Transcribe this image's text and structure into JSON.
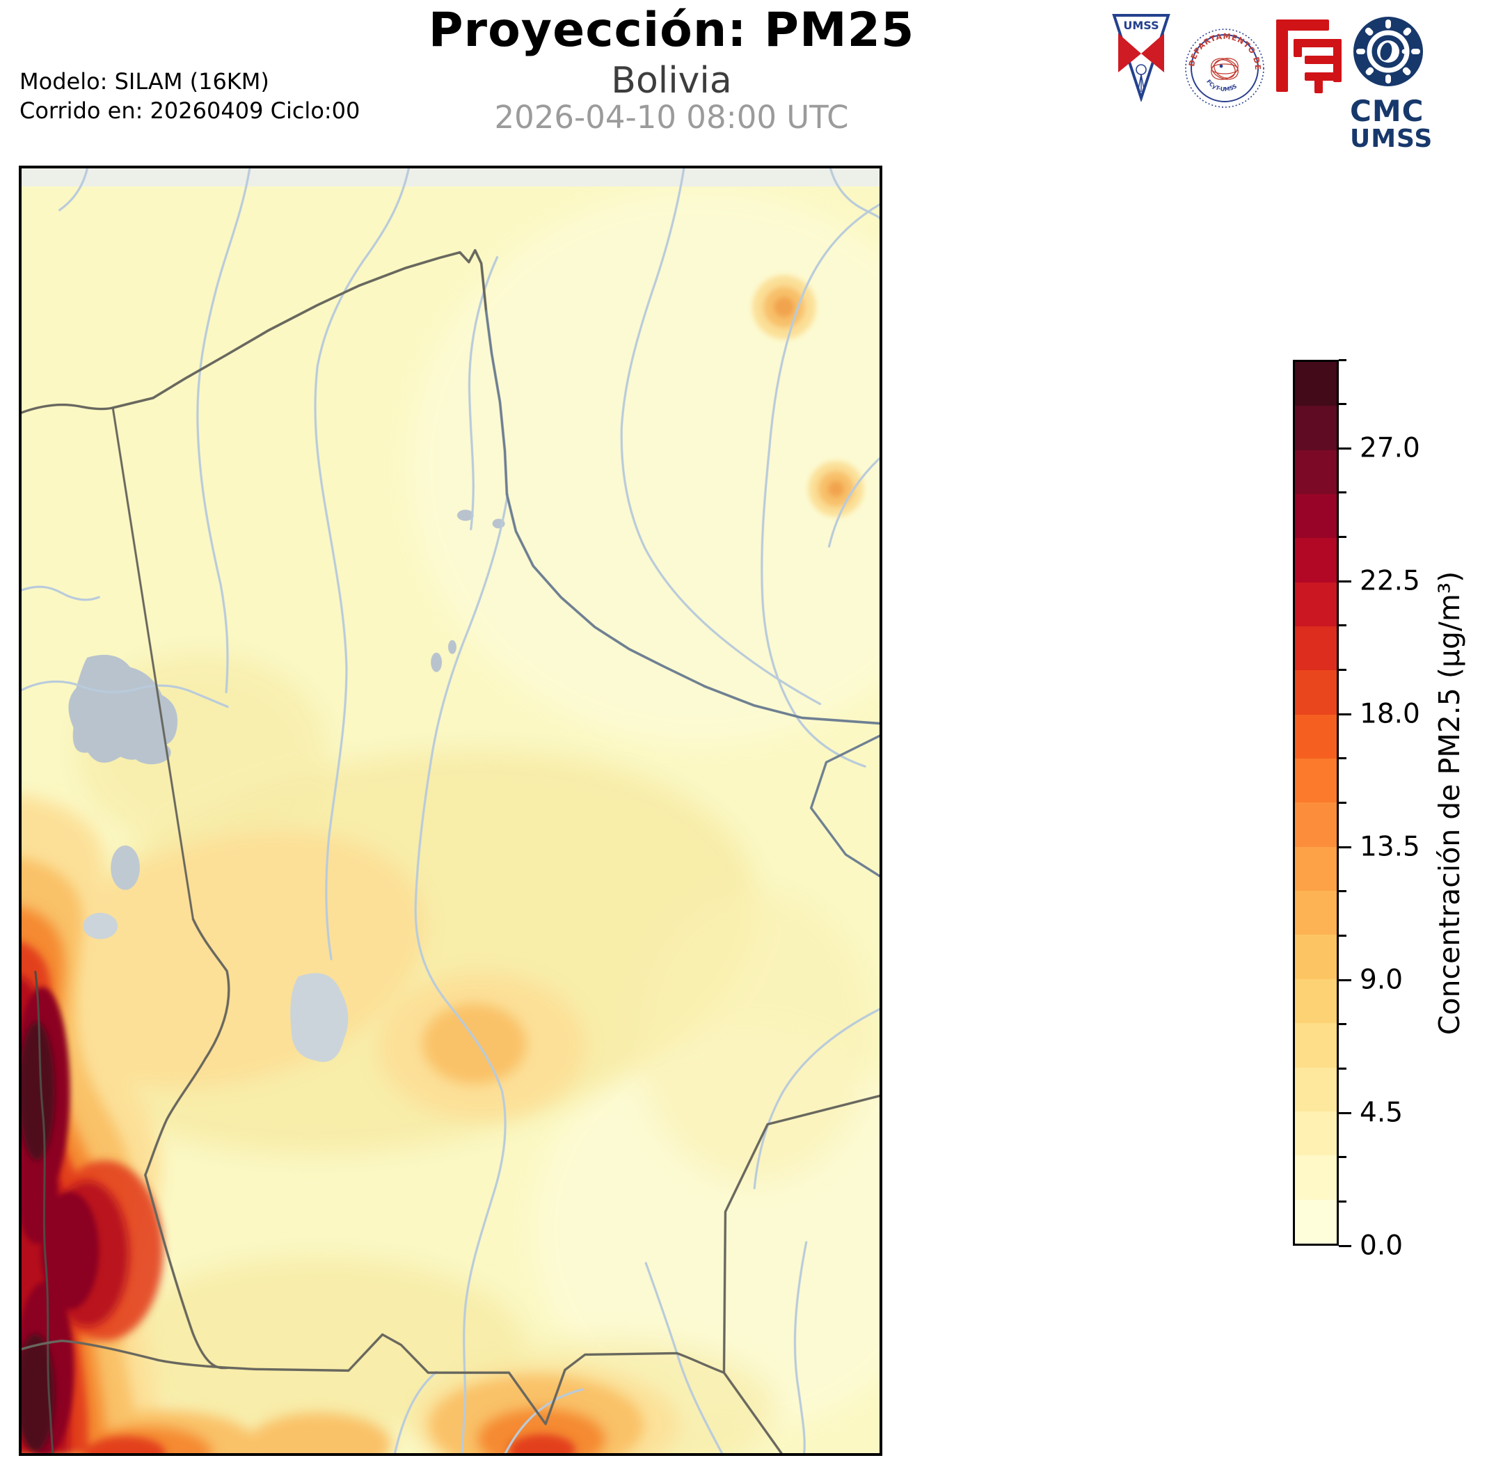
{
  "header": {
    "title": "Proyección: PM25",
    "subtitle": "Bolivia",
    "datetime": "2026-04-10 08:00 UTC",
    "model_line1": "Modelo: SILAM (16KM)",
    "model_line2": "Corrido en: 20260409 Ciclo:00"
  },
  "logos": {
    "umss_pennant": "UMSS",
    "seal_arc_top": "DEPARTAMENTO DE FÍSICA",
    "seal_arc_bottom": "FCyT-UMSS",
    "cmc_title": "CMC",
    "cmc_subtitle": "UMSS"
  },
  "colorbar": {
    "label": "Concentración de PM2.5 (µg/m³)",
    "range_min": 0.0,
    "range_max": 30.0,
    "band_step": 1.5,
    "major_tick_step": 4.5,
    "major_ticks": [
      "0.0",
      "4.5",
      "9.0",
      "13.5",
      "18.0",
      "22.5",
      "27.0"
    ],
    "band_colors_bottom_to_top": [
      "#fffedb",
      "#fff9c8",
      "#fef1b2",
      "#fee89d",
      "#fede88",
      "#fdd274",
      "#fdc463",
      "#fdb353",
      "#fda246",
      "#fc8e3b",
      "#fb7a2b",
      "#f56020",
      "#ea461d",
      "#dc2d1e",
      "#ca1722",
      "#b20826",
      "#980427",
      "#7c0a27",
      "#5f0b23",
      "#430a19"
    ]
  },
  "map": {
    "region": "Bolivia",
    "background": "#fbf8c4",
    "top_strip": "#edefe9",
    "river": "#b9cbdb",
    "border": "#68675e",
    "border_river": "#6e7f92",
    "coast": "#4f4b45",
    "lake": "#b8c3ce",
    "salar": "#cbd4da",
    "frame": "#000000"
  },
  "chart_data": {
    "type": "heatmap",
    "title": "Proyección: PM25",
    "region": "Bolivia",
    "valid_time": "2026-04-10 08:00 UTC",
    "model": "SILAM (16KM)",
    "run_date": "20260409",
    "cycle": "00",
    "units": "µg/m³",
    "colorbar_label": "Concentración de PM2.5 (µg/m³)",
    "scale": {
      "min": 0.0,
      "max": 30.0,
      "band_step": 1.5,
      "major_ticks": [
        0.0,
        4.5,
        9.0,
        13.5,
        18.0,
        22.5,
        27.0
      ],
      "legend_position": "right",
      "orientation": "vertical"
    },
    "field_summary": {
      "background_east_north": "0-4.5",
      "central_diagonal_band": "4.5-9.0",
      "western_andes_band": "13.5-27.0",
      "maximum_zone": "western (Chile coast) edge, 27.0-30.0",
      "hotspots": [
        {
          "name": "northeast ring",
          "approx_value": "6-9"
        },
        {
          "name": "east ring near border",
          "approx_value": "6-9"
        },
        {
          "name": "south central spot at bottom edge",
          "approx_value": "13.5-21.0"
        },
        {
          "name": "central Altiplano spot",
          "approx_value": "9-12"
        }
      ],
      "water_bodies": [
        "Lago Titicaca",
        "Lago Poopó",
        "Salar de Uyuni"
      ]
    }
  }
}
